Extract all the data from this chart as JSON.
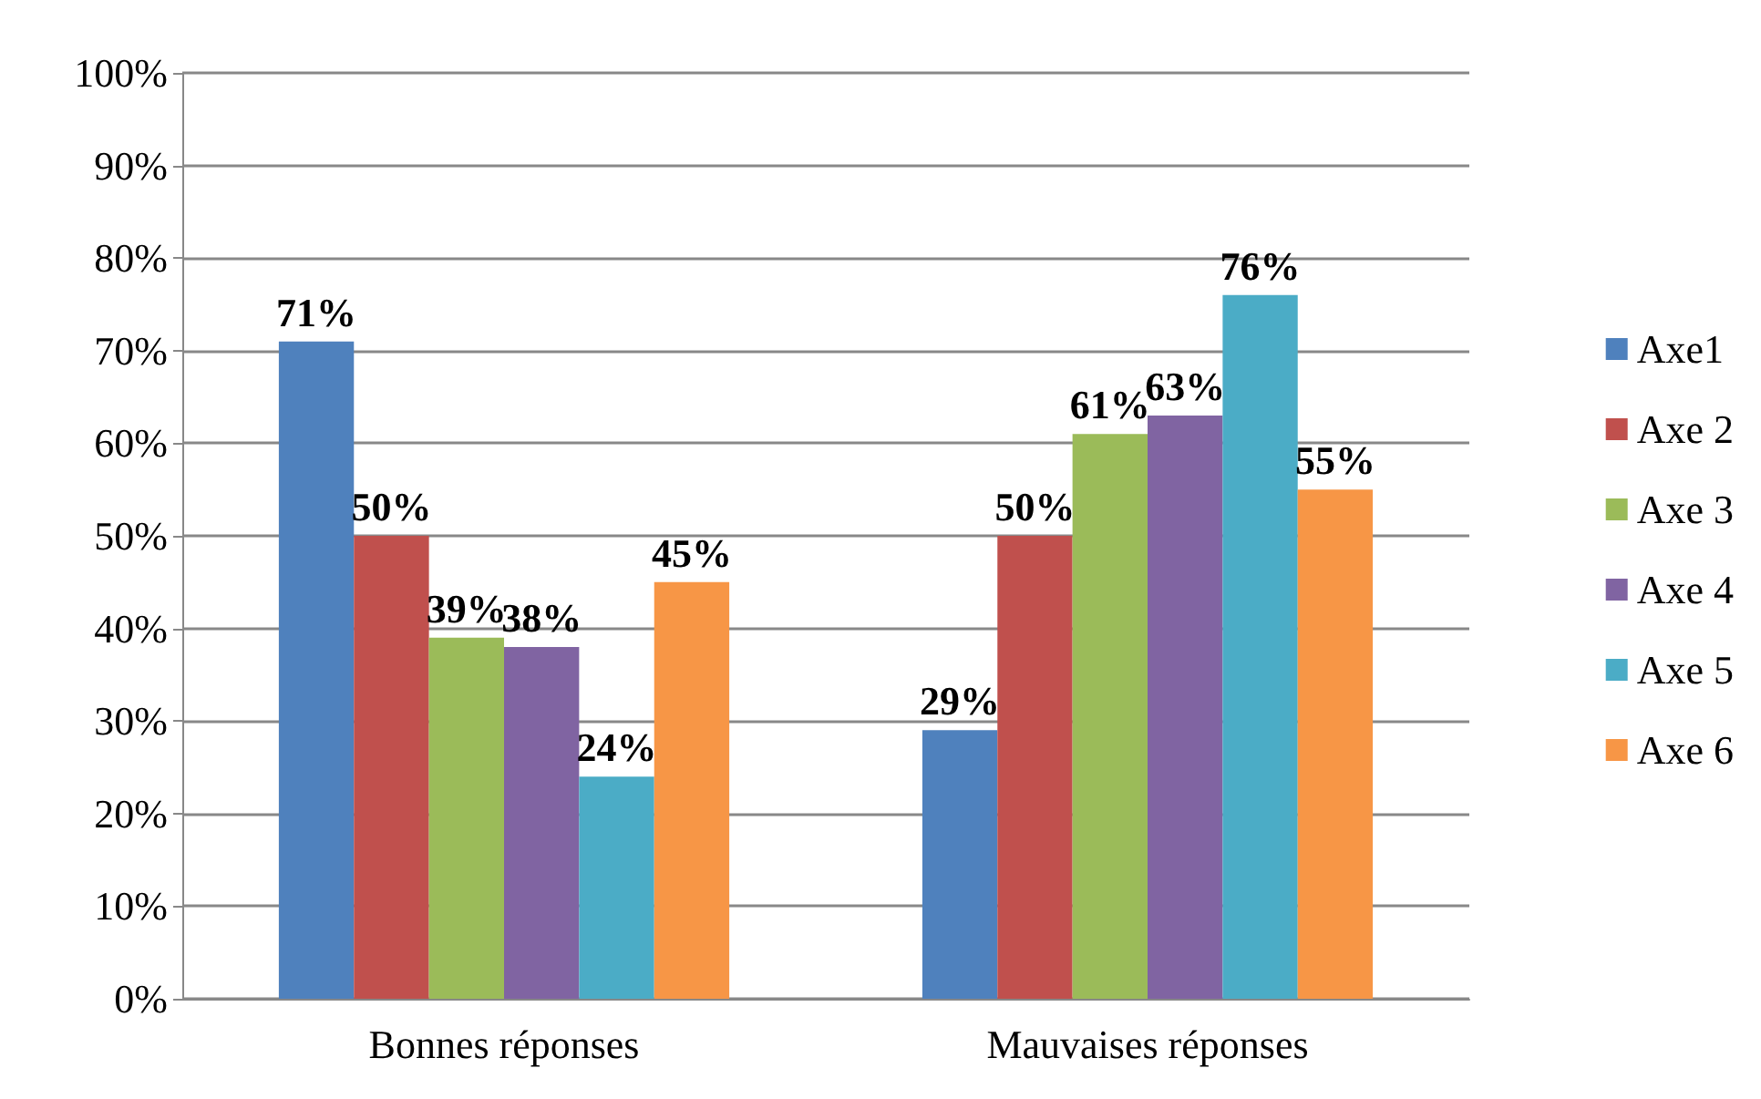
{
  "chart_data": {
    "type": "bar",
    "categories": [
      "Bonnes réponses",
      "Mauvaises réponses"
    ],
    "series": [
      {
        "name": "Axe1",
        "color": "#4f81bd",
        "values": [
          71,
          29
        ],
        "value_labels": [
          "71%",
          "29%"
        ]
      },
      {
        "name": "Axe 2",
        "color": "#c0504d",
        "values": [
          50,
          50
        ],
        "value_labels": [
          "50%",
          "50%"
        ]
      },
      {
        "name": "Axe 3",
        "color": "#9bbb59",
        "values": [
          39,
          61
        ],
        "value_labels": [
          "39%",
          "61%"
        ]
      },
      {
        "name": "Axe 4",
        "color": "#8064a2",
        "values": [
          38,
          63
        ],
        "value_labels": [
          "38%",
          "63%"
        ]
      },
      {
        "name": "Axe 5",
        "color": "#4bacc6",
        "values": [
          24,
          76
        ],
        "value_labels": [
          "24%",
          "76%"
        ]
      },
      {
        "name": "Axe 6",
        "color": "#f79646",
        "values": [
          45,
          55
        ],
        "value_labels": [
          "45%",
          "55%"
        ]
      }
    ],
    "ylim": [
      0,
      100
    ],
    "yticks": [
      {
        "value": 0,
        "label": "0%"
      },
      {
        "value": 10,
        "label": "10%"
      },
      {
        "value": 20,
        "label": "20%"
      },
      {
        "value": 30,
        "label": "30%"
      },
      {
        "value": 40,
        "label": "40%"
      },
      {
        "value": 50,
        "label": "50%"
      },
      {
        "value": 60,
        "label": "60%"
      },
      {
        "value": 70,
        "label": "70%"
      },
      {
        "value": 80,
        "label": "80%"
      },
      {
        "value": 90,
        "label": "90%"
      },
      {
        "value": 100,
        "label": "100%"
      }
    ],
    "grid": "y",
    "legend": "right"
  }
}
